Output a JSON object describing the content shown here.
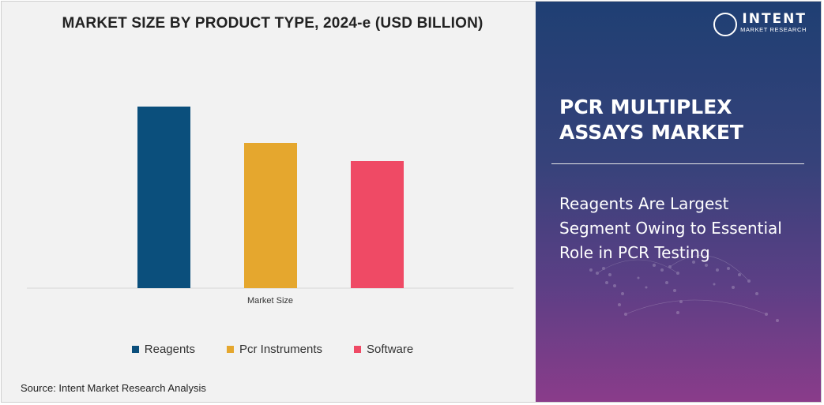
{
  "chart_data": {
    "type": "bar",
    "title": "MARKET SIZE BY PRODUCT TYPE, 2024-e (USD BILLION)",
    "xlabel": "Market Size",
    "ylabel": "",
    "categories": [
      "Market Size"
    ],
    "series": [
      {
        "name": "Reagents",
        "values": [
          1.0
        ],
        "color": "#0b4f7c"
      },
      {
        "name": "Pcr Instruments",
        "values": [
          0.8
        ],
        "color": "#e5a72e"
      },
      {
        "name": "Software",
        "values": [
          0.7
        ],
        "color": "#ef4a65"
      }
    ],
    "ylim": [
      0,
      1.1
    ],
    "grid": false,
    "legend_position": "bottom"
  },
  "source": "Source: Intent Market Research Analysis",
  "logo": {
    "main": "INTENT",
    "sub": "MARKET RESEARCH"
  },
  "side": {
    "title": "PCR MULTIPLEX ASSAYS MARKET",
    "insight": "Reagents Are Largest Segment Owing to Essential Role in PCR Testing"
  }
}
